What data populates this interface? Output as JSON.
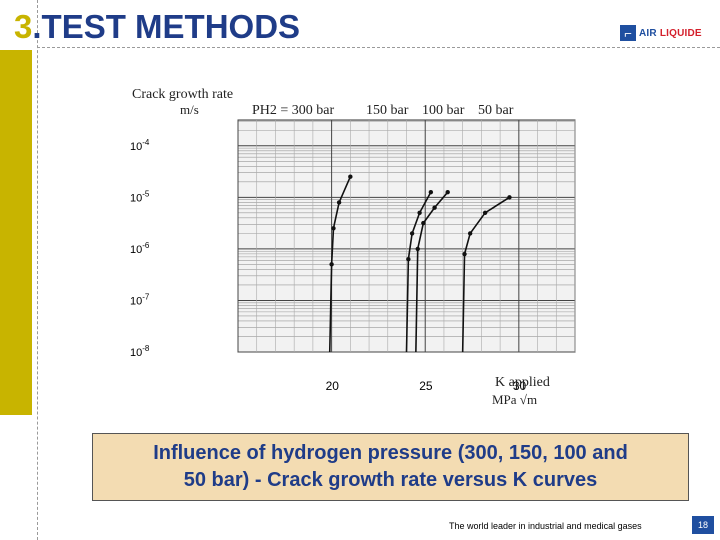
{
  "slide": {
    "title_number": "3",
    "title_text": "TEST METHODS",
    "caption_line1": "Influence of hydrogen pressure (300, 150, 100 and",
    "caption_line2": "50 bar) - Crack growth rate versus K curves",
    "footer": "The world leader in industrial and medical gases",
    "page_number": "18",
    "logo_line1": "AIR",
    "logo_line2": "LIQUIDE",
    "colors": {
      "title": "#1f3c88",
      "accent": "#c8b400",
      "caption_bg": "#f3dcb2",
      "brand_blue": "#1f4fa0"
    }
  },
  "chart_data": {
    "type": "line",
    "ylabel_line1": "Crack growth rate",
    "ylabel_line2": "m/s",
    "xlabel_line1": "K applied",
    "xlabel_line2": "MPa √m",
    "y_scale": "log",
    "y_tick_labels": [
      "10-4",
      "10-5",
      "10-6",
      "10-7",
      "10-8"
    ],
    "x_tick_labels": [
      "20",
      "25",
      "30"
    ],
    "xlim": [
      15,
      33
    ],
    "ylim_exponent": [
      -8,
      -3.5
    ],
    "pressure_label": "PH2 = 300 bar",
    "series": [
      {
        "name": "300 bar",
        "x": [
          19.9,
          20.0,
          20.1,
          20.4,
          21.0
        ],
        "y_exp": [
          -8,
          -6.3,
          -5.6,
          -5.1,
          -4.6
        ]
      },
      {
        "name": "150 bar",
        "x": [
          24.0,
          24.1,
          24.3,
          24.7,
          25.3
        ],
        "y_exp": [
          -8,
          -6.2,
          -5.7,
          -5.3,
          -4.9
        ]
      },
      {
        "name": "100 bar",
        "x": [
          24.5,
          24.6,
          24.9,
          25.5,
          26.2
        ],
        "y_exp": [
          -8,
          -6.0,
          -5.5,
          -5.2,
          -4.9
        ]
      },
      {
        "name": "50 bar",
        "x": [
          27.0,
          27.1,
          27.4,
          28.2,
          29.5
        ],
        "y_exp": [
          -8,
          -6.1,
          -5.7,
          -5.3,
          -5.0
        ]
      }
    ]
  }
}
